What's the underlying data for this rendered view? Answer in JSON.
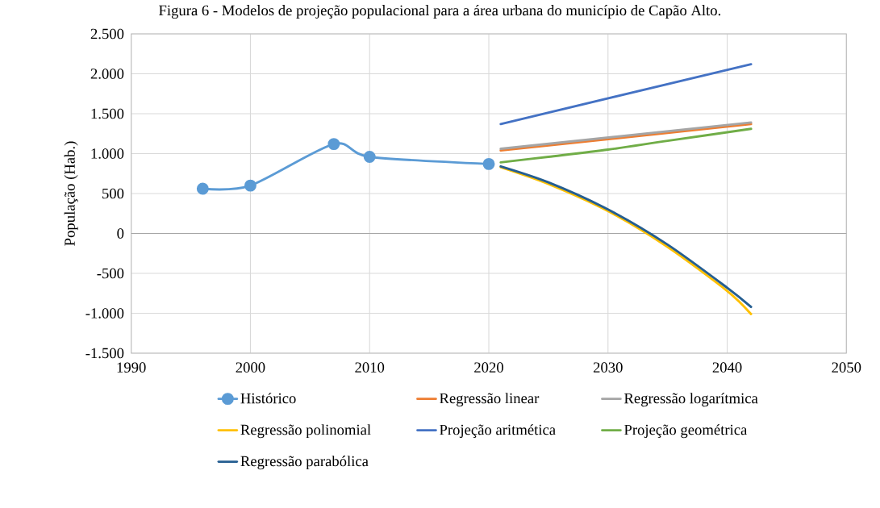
{
  "chart_data": {
    "type": "line",
    "title": "Figura 6 - Modelos de projeção populacional para a área urbana do município de Capão Alto.",
    "ylabel": "População (Hab.)",
    "xlim": [
      1990,
      2050
    ],
    "xticks": [
      1990,
      2000,
      2010,
      2020,
      2030,
      2040,
      2050
    ],
    "ylim": [
      -1500,
      2500
    ],
    "yticks": [
      {
        "value": -1500,
        "label": "-1.500"
      },
      {
        "value": -1000,
        "label": "-1.000"
      },
      {
        "value": -500,
        "label": "-500"
      },
      {
        "value": 0,
        "label": "0"
      },
      {
        "value": 500,
        "label": "500"
      },
      {
        "value": 1000,
        "label": "1.000"
      },
      {
        "value": 1500,
        "label": "1.500"
      },
      {
        "value": 2000,
        "label": "2.000"
      },
      {
        "value": 2500,
        "label": "2.500"
      }
    ],
    "grid": true,
    "legend": "bottom",
    "series": [
      {
        "name": "Histórico",
        "color": "#5b9bd5",
        "marker": "circle",
        "x": [
          1996,
          2000,
          2007,
          2010,
          2020
        ],
        "values": [
          560,
          600,
          1120,
          960,
          870
        ]
      },
      {
        "name": "Regressão linear",
        "color": "#ed7d31",
        "x": [
          2021,
          2042
        ],
        "values": [
          1040,
          1370
        ]
      },
      {
        "name": "Regressão logarítmica",
        "color": "#a5a5a5",
        "x": [
          2021,
          2042
        ],
        "values": [
          1060,
          1390
        ]
      },
      {
        "name": "Regressão polinomial",
        "color": "#ffc000",
        "x": [
          2021,
          2025,
          2030,
          2035,
          2040,
          2042
        ],
        "values": [
          830,
          620,
          280,
          -170,
          -720,
          -1010
        ]
      },
      {
        "name": "Projeção aritmética",
        "color": "#4472c4",
        "x": [
          2021,
          2042
        ],
        "values": [
          1370,
          2120
        ]
      },
      {
        "name": "Projeção geométrica",
        "color": "#70ad47",
        "x": [
          2021,
          2025,
          2030,
          2035,
          2042
        ],
        "values": [
          890,
          960,
          1050,
          1160,
          1310
        ]
      },
      {
        "name": "Regressão parabólica",
        "color": "#255e91",
        "x": [
          2021,
          2025,
          2030,
          2035,
          2040,
          2042
        ],
        "values": [
          840,
          640,
          300,
          -140,
          -680,
          -920
        ]
      }
    ]
  }
}
